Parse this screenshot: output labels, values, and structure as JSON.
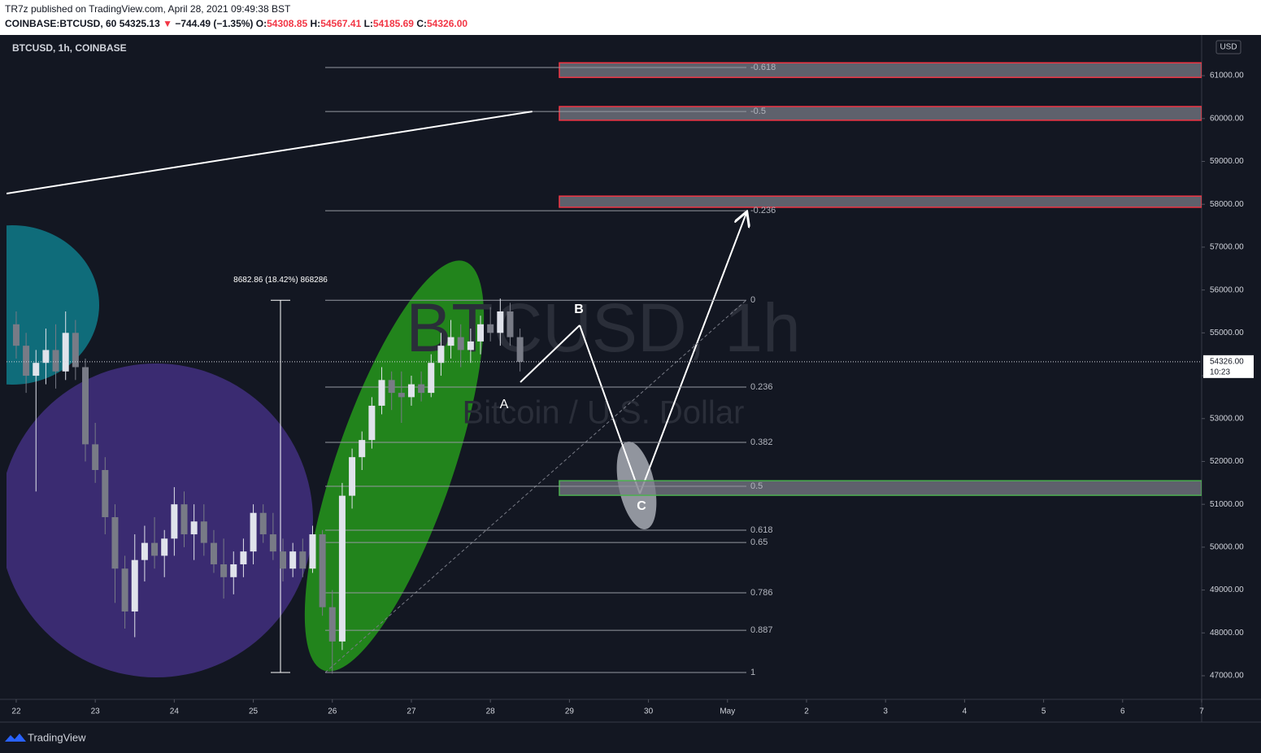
{
  "header": {
    "published": "TR7z published on TradingView.com, April 28, 2021 09:49:38 BST",
    "symbol": "COINBASE:BTCUSD, 60",
    "last": "54325.13",
    "arrow": "▼",
    "change": "−744.49 (−1.35%)",
    "o_label": "O:",
    "open": "54308.85",
    "h_label": "H:",
    "high": "54567.41",
    "l_label": "L:",
    "low": "54185.69",
    "c_label": "C:",
    "close": "54326.00"
  },
  "chart_data": {
    "type": "candlestick",
    "title": "BTCUSD, 1h, COINBASE",
    "currency": "USD",
    "watermark": "BTCUSD, 1h",
    "watermark_sub": "Bitcoin / U.S. Dollar",
    "up_color": "#e0e3eb",
    "down_color": "#787b86",
    "x": [
      22.0,
      22.125,
      22.25,
      22.375,
      22.5,
      22.625,
      22.75,
      22.875,
      23.0,
      23.125,
      23.25,
      23.375,
      23.5,
      23.625,
      23.75,
      23.875,
      24.0,
      24.125,
      24.25,
      24.375,
      24.5,
      24.625,
      24.75,
      24.875,
      25.0,
      25.125,
      25.25,
      25.375,
      25.5,
      25.625,
      25.75,
      25.875,
      26.0,
      26.125,
      26.25,
      26.375,
      26.5,
      26.625,
      26.75,
      26.875,
      27.0,
      27.125,
      27.25,
      27.375,
      27.5,
      27.625,
      27.75,
      27.875,
      28.0,
      28.125,
      28.25,
      28.375
    ],
    "open": [
      55200,
      54700,
      54000,
      54300,
      54600,
      54100,
      55000,
      54200,
      52400,
      51800,
      50700,
      49500,
      48500,
      49700,
      50100,
      49800,
      50200,
      51000,
      50300,
      50600,
      50100,
      49600,
      49300,
      49600,
      49900,
      50800,
      50300,
      49900,
      49500,
      49900,
      49500,
      50300,
      48600,
      47800,
      51200,
      52100,
      52500,
      53300,
      53900,
      53600,
      53500,
      53800,
      53600,
      54300,
      54700,
      54900,
      54600,
      54800,
      55200,
      55000,
      55500,
      54900
    ],
    "high": [
      55500,
      55000,
      54600,
      55100,
      55200,
      55500,
      55300,
      54400,
      52900,
      52100,
      51000,
      49800,
      50300,
      50500,
      50700,
      50400,
      51400,
      51300,
      51000,
      51000,
      50400,
      50200,
      49900,
      50200,
      51000,
      51000,
      50800,
      50200,
      50100,
      50200,
      50500,
      50400,
      49000,
      51500,
      52300,
      52700,
      53500,
      54200,
      54100,
      54100,
      54000,
      54100,
      54500,
      55000,
      55300,
      55200,
      55100,
      55400,
      55600,
      55800,
      55700,
      55100
    ],
    "low": [
      54400,
      53600,
      51300,
      53800,
      53700,
      53900,
      53900,
      52000,
      51500,
      50300,
      48700,
      48100,
      47900,
      49200,
      49500,
      49300,
      49800,
      50000,
      49700,
      49800,
      49400,
      48800,
      48900,
      49300,
      49600,
      50100,
      49700,
      49200,
      49300,
      49300,
      49400,
      48400,
      47050,
      47600,
      50900,
      51800,
      52300,
      53100,
      53200,
      52900,
      53300,
      53400,
      53500,
      54000,
      54400,
      54200,
      54300,
      54500,
      54800,
      54700,
      54700,
      54100
    ],
    "close": [
      54700,
      54000,
      54300,
      54600,
      54100,
      55000,
      54200,
      52400,
      51800,
      50700,
      49500,
      48500,
      49700,
      50100,
      49800,
      50200,
      51000,
      50300,
      50600,
      50100,
      49600,
      49300,
      49600,
      49900,
      50800,
      50300,
      49900,
      49500,
      49900,
      49500,
      50300,
      48600,
      47800,
      51200,
      52100,
      52500,
      53300,
      53900,
      53600,
      53500,
      53800,
      53600,
      54300,
      54700,
      54900,
      54600,
      54800,
      55200,
      55000,
      55500,
      54900,
      54326
    ],
    "xlim": [
      21.877,
      37.0
    ],
    "ylim": [
      46450,
      61950
    ],
    "xticks": [
      22,
      23,
      24,
      25,
      26,
      27,
      28,
      29,
      30,
      {
        "value": 31,
        "label": "May"
      },
      {
        "value": 32,
        "label": "2"
      },
      {
        "value": 33,
        "label": "3"
      },
      {
        "value": 34,
        "label": "4"
      },
      {
        "value": 35,
        "label": "5"
      },
      {
        "value": 36,
        "label": "6"
      },
      {
        "value": 37,
        "label": "7"
      }
    ],
    "yticks": [
      {
        "value": 47000,
        "label": "47000.00"
      },
      {
        "value": 48000,
        "label": "48000.00"
      },
      {
        "value": 49000,
        "label": "49000.00"
      },
      {
        "value": 50000,
        "label": "50000.00"
      },
      {
        "value": 51000,
        "label": "51000.00"
      },
      {
        "value": 52000,
        "label": "52000.00"
      },
      {
        "value": 53000,
        "label": "53000.00"
      },
      {
        "value": 54000,
        "label": "54000.00"
      },
      {
        "value": 55000,
        "label": "55000.00"
      },
      {
        "value": 56000,
        "label": "56000.00"
      },
      {
        "value": 57000,
        "label": "57000.00"
      },
      {
        "value": 58000,
        "label": "58000.00"
      },
      {
        "value": 59000,
        "label": "59000.00"
      },
      {
        "value": 60000,
        "label": "60000.00"
      },
      {
        "value": 61000,
        "label": "61000.00"
      }
    ],
    "last_price": {
      "value": 54326,
      "label": "54326.00",
      "countdown": "10:23"
    },
    "fib": {
      "levels": [
        -0.618,
        -0.5,
        -0.236,
        0,
        0.236,
        0.382,
        0.5,
        0.618,
        0.65,
        0.786,
        0.887,
        1
      ],
      "prices": [
        61190,
        60165,
        57850,
        55760,
        53735,
        52445,
        51420,
        50395,
        50110,
        48935,
        48060,
        47075
      ]
    },
    "measure": {
      "label": "8682.86 (18.42%) 868286",
      "top": 55760,
      "bottom": 47075
    },
    "zones": [
      {
        "top": 61300,
        "bottom": 60960,
        "color": "#f23645"
      },
      {
        "top": 60280,
        "bottom": 59960,
        "color": "#f23645"
      },
      {
        "top": 58190,
        "bottom": 57930,
        "color": "#f23645"
      },
      {
        "top": 51550,
        "bottom": 51210,
        "color": "#4caf50"
      }
    ],
    "trendline": {
      "x": [
        21.877,
        28.53
      ],
      "y": [
        58250,
        60165
      ]
    },
    "annotations": [
      "A",
      "B",
      "C"
    ],
    "brand": "TradingView"
  }
}
